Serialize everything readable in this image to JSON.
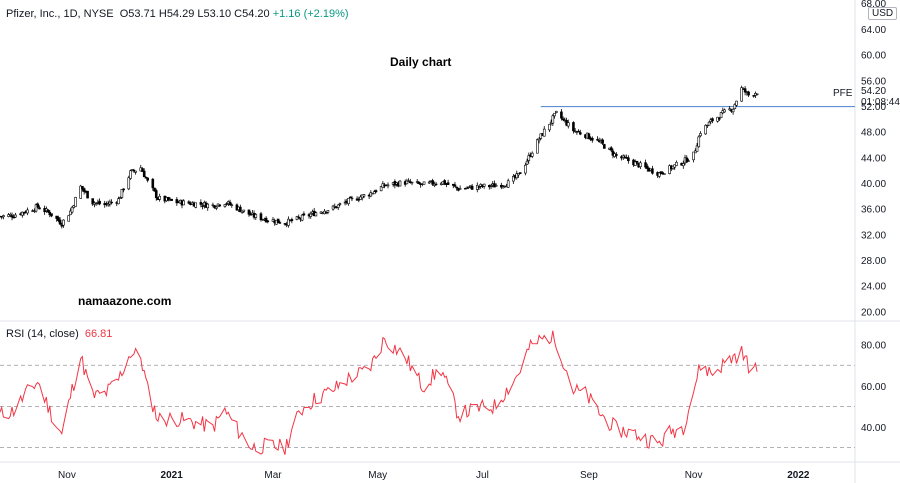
{
  "header": {
    "symbol": "Pfizer, Inc., 1D, NYSE",
    "o": "O53.71",
    "h": "H54.29",
    "l": "L53.10",
    "c": "C54.20",
    "change": "+1.16 (+2.19%)"
  },
  "annotations": {
    "chart_title": "Daily chart",
    "watermark": "namaazone.com"
  },
  "price_scale": {
    "currency": "USD",
    "top_partial": "68.00",
    "current_price": "54.20",
    "countdown": "01:08:44",
    "symbol_tag": "PFE"
  },
  "rsi": {
    "label": "RSI (14, close)",
    "value": "66.81"
  },
  "colors": {
    "candle": "#000000",
    "hline": "#5b8fd6",
    "rsi_line": "#f23645",
    "grid_sep": "#e0e3eb",
    "rsi_band": "#9598a1",
    "change": "#089981"
  },
  "chart_data": [
    {
      "type": "candlestick",
      "title": "Pfizer, Inc., 1D, NYSE",
      "xlabel": "",
      "ylabel": "",
      "x_ticks": [
        "Nov",
        "2021",
        "Mar",
        "May",
        "Jul",
        "Sep",
        "Nov",
        "2022"
      ],
      "x_tick_dates": [
        "2020-11-01",
        "2021-01-01",
        "2021-03-01",
        "2021-05-01",
        "2021-07-01",
        "2021-09-01",
        "2021-11-01",
        "2022-01-01"
      ],
      "x_range": [
        "2020-09-23",
        "2022-02-03"
      ],
      "y_ticks": [
        64.0,
        60.0,
        56.0,
        52.0,
        48.0,
        44.0,
        40.0,
        36.0,
        32.0,
        28.0,
        24.0,
        20.0
      ],
      "y_tick_labels": [
        "64.00",
        "60.00",
        "56.00",
        "52.00",
        "48.00",
        "44.00",
        "40.00",
        "36.00",
        "32.00",
        "28.00",
        "24.00",
        "20.00"
      ],
      "ylim": [
        18.5,
        68.5
      ],
      "horizontal_line": {
        "value": 51.9,
        "from_date": "2021-08-04"
      },
      "last_close": 54.2,
      "close_series": [
        [
          "2020-09-23",
          34.8
        ],
        [
          "2020-10-01",
          35.0
        ],
        [
          "2020-10-08",
          35.6
        ],
        [
          "2020-10-15",
          36.3
        ],
        [
          "2020-10-22",
          35.3
        ],
        [
          "2020-10-29",
          33.7
        ],
        [
          "2020-11-03",
          35.6
        ],
        [
          "2020-11-09",
          39.4
        ],
        [
          "2020-11-16",
          37.0
        ],
        [
          "2020-11-23",
          36.6
        ],
        [
          "2020-12-01",
          37.4
        ],
        [
          "2020-12-08",
          41.6
        ],
        [
          "2020-12-14",
          42.4
        ],
        [
          "2020-12-18",
          40.2
        ],
        [
          "2020-12-24",
          37.6
        ],
        [
          "2021-01-04",
          37.0
        ],
        [
          "2021-01-15",
          36.8
        ],
        [
          "2021-01-25",
          36.5
        ],
        [
          "2021-02-01",
          37.0
        ],
        [
          "2021-02-09",
          36.0
        ],
        [
          "2021-02-17",
          34.9
        ],
        [
          "2021-02-26",
          34.3
        ],
        [
          "2021-03-08",
          33.8
        ],
        [
          "2021-03-17",
          34.5
        ],
        [
          "2021-03-26",
          35.4
        ],
        [
          "2021-04-05",
          36.1
        ],
        [
          "2021-04-15",
          37.3
        ],
        [
          "2021-04-26",
          38.3
        ],
        [
          "2021-05-05",
          39.6
        ],
        [
          "2021-05-17",
          40.1
        ],
        [
          "2021-05-27",
          39.7
        ],
        [
          "2021-06-07",
          40.2
        ],
        [
          "2021-06-17",
          39.1
        ],
        [
          "2021-06-28",
          39.4
        ],
        [
          "2021-07-08",
          39.6
        ],
        [
          "2021-07-16",
          40.0
        ],
        [
          "2021-07-22",
          41.2
        ],
        [
          "2021-07-28",
          44.0
        ],
        [
          "2021-08-03",
          46.9
        ],
        [
          "2021-08-09",
          49.3
        ],
        [
          "2021-08-13",
          50.8
        ],
        [
          "2021-08-18",
          49.6
        ],
        [
          "2021-08-23",
          48.2
        ],
        [
          "2021-08-30",
          47.5
        ],
        [
          "2021-09-08",
          46.2
        ],
        [
          "2021-09-17",
          44.2
        ],
        [
          "2021-09-27",
          43.2
        ],
        [
          "2021-10-05",
          42.2
        ],
        [
          "2021-10-12",
          41.5
        ],
        [
          "2021-10-19",
          42.4
        ],
        [
          "2021-10-26",
          43.3
        ],
        [
          "2021-11-01",
          44.4
        ],
        [
          "2021-11-05",
          48.0
        ],
        [
          "2021-11-12",
          49.8
        ],
        [
          "2021-11-19",
          51.0
        ],
        [
          "2021-11-24",
          51.7
        ],
        [
          "2021-11-29",
          54.7
        ],
        [
          "2021-12-03",
          53.7
        ],
        [
          "2021-12-08",
          54.2
        ]
      ]
    },
    {
      "type": "line",
      "title": "RSI (14, close)",
      "xlabel": "",
      "ylabel": "",
      "y_ticks": [
        80.0,
        60.0,
        40.0
      ],
      "y_tick_labels": [
        "80.00",
        "60.00",
        "40.00"
      ],
      "ylim": [
        23,
        91
      ],
      "bands": [
        70,
        50,
        30
      ],
      "last_value": 66.81,
      "series": [
        {
          "values": [
            [
              "2020-09-23",
              46
            ],
            [
              "2020-10-01",
              48
            ],
            [
              "2020-10-08",
              56
            ],
            [
              "2020-10-15",
              62
            ],
            [
              "2020-10-22",
              48
            ],
            [
              "2020-10-29",
              36
            ],
            [
              "2020-11-03",
              55
            ],
            [
              "2020-11-09",
              74
            ],
            [
              "2020-11-16",
              55
            ],
            [
              "2020-11-23",
              56
            ],
            [
              "2020-12-01",
              63
            ],
            [
              "2020-12-08",
              76
            ],
            [
              "2020-12-14",
              74
            ],
            [
              "2020-12-18",
              58
            ],
            [
              "2020-12-24",
              44
            ],
            [
              "2021-01-04",
              44
            ],
            [
              "2021-01-15",
              42
            ],
            [
              "2021-01-25",
              40
            ],
            [
              "2021-02-01",
              48
            ],
            [
              "2021-02-09",
              38
            ],
            [
              "2021-02-17",
              30
            ],
            [
              "2021-02-26",
              31
            ],
            [
              "2021-03-08",
              30
            ],
            [
              "2021-03-17",
              48
            ],
            [
              "2021-03-26",
              54
            ],
            [
              "2021-04-05",
              58
            ],
            [
              "2021-04-15",
              64
            ],
            [
              "2021-04-26",
              68
            ],
            [
              "2021-05-05",
              83
            ],
            [
              "2021-05-17",
              74
            ],
            [
              "2021-05-27",
              60
            ],
            [
              "2021-06-07",
              68
            ],
            [
              "2021-06-17",
              46
            ],
            [
              "2021-06-28",
              49
            ],
            [
              "2021-07-08",
              50
            ],
            [
              "2021-07-16",
              59
            ],
            [
              "2021-07-22",
              66
            ],
            [
              "2021-07-28",
              78
            ],
            [
              "2021-08-03",
              82
            ],
            [
              "2021-08-09",
              84
            ],
            [
              "2021-08-13",
              82
            ],
            [
              "2021-08-18",
              70
            ],
            [
              "2021-08-23",
              58
            ],
            [
              "2021-08-30",
              56
            ],
            [
              "2021-09-08",
              46
            ],
            [
              "2021-09-17",
              39
            ],
            [
              "2021-09-27",
              37
            ],
            [
              "2021-10-05",
              34
            ],
            [
              "2021-10-12",
              32
            ],
            [
              "2021-10-19",
              38
            ],
            [
              "2021-10-26",
              40
            ],
            [
              "2021-11-01",
              58
            ],
            [
              "2021-11-05",
              70
            ],
            [
              "2021-11-12",
              66
            ],
            [
              "2021-11-19",
              71
            ],
            [
              "2021-11-24",
              74
            ],
            [
              "2021-11-29",
              76
            ],
            [
              "2021-12-03",
              70
            ],
            [
              "2021-12-08",
              66.81
            ]
          ]
        }
      ]
    }
  ]
}
